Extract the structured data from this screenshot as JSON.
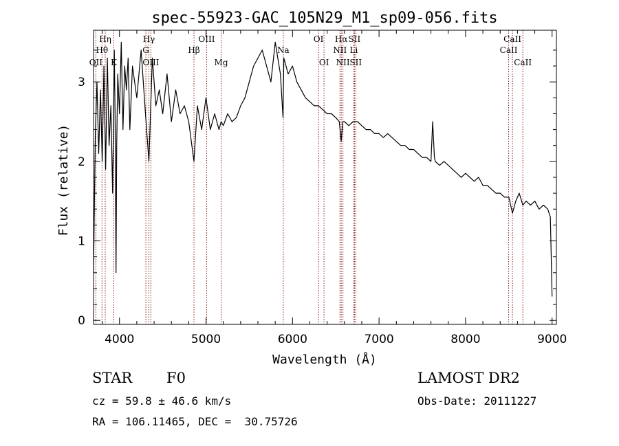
{
  "chart_data": {
    "type": "line",
    "title": "spec-55923-GAC_105N29_M1_sp09-056.fits",
    "xlabel": "Wavelength (Å)",
    "ylabel": "Flux (relative)",
    "xlim": [
      3700,
      9050
    ],
    "ylim": [
      -0.05,
      3.65
    ],
    "xticks": [
      4000,
      5000,
      6000,
      7000,
      8000,
      9000
    ],
    "yticks": [
      0,
      1,
      2,
      3
    ],
    "grid": false,
    "series": [
      {
        "x": [
          3700,
          3720,
          3740,
          3760,
          3780,
          3800,
          3820,
          3840,
          3860,
          3880,
          3900,
          3920,
          3940,
          3950,
          3960,
          3968,
          3980,
          4000,
          4020,
          4040,
          4060,
          4080,
          4100,
          4120,
          4150,
          4200,
          4250,
          4300,
          4340,
          4380,
          4420,
          4460,
          4500,
          4550,
          4600,
          4650,
          4700,
          4750,
          4800,
          4861,
          4900,
          4950,
          5000,
          5050,
          5100,
          5150,
          5175,
          5200,
          5250,
          5300,
          5350,
          5400,
          5450,
          5500,
          5550,
          5600,
          5650,
          5700,
          5750,
          5800,
          5830,
          5860,
          5890,
          5900,
          5950,
          6000,
          6050,
          6100,
          6150,
          6200,
          6250,
          6300,
          6350,
          6400,
          6450,
          6500,
          6540,
          6563,
          6580,
          6600,
          6650,
          6700,
          6750,
          6800,
          6850,
          6900,
          6950,
          7000,
          7050,
          7100,
          7150,
          7200,
          7250,
          7300,
          7350,
          7400,
          7450,
          7500,
          7550,
          7600,
          7620,
          7640,
          7650,
          7700,
          7750,
          7800,
          7850,
          7900,
          7950,
          8000,
          8050,
          8100,
          8150,
          8200,
          8250,
          8300,
          8350,
          8400,
          8450,
          8500,
          8542,
          8580,
          8620,
          8662,
          8700,
          8750,
          8800,
          8850,
          8900,
          8950,
          8980,
          9000
        ],
        "y": [
          0.6,
          2.3,
          3.0,
          2.1,
          2.9,
          2.0,
          3.2,
          1.9,
          3.3,
          2.2,
          2.7,
          1.6,
          3.4,
          2.5,
          0.6,
          2.2,
          3.1,
          2.6,
          3.5,
          2.4,
          3.2,
          2.9,
          3.3,
          2.4,
          3.2,
          2.8,
          3.4,
          2.6,
          2.0,
          3.3,
          2.7,
          2.9,
          2.6,
          3.1,
          2.5,
          2.9,
          2.6,
          2.7,
          2.5,
          2.0,
          2.7,
          2.4,
          2.8,
          2.4,
          2.6,
          2.4,
          2.5,
          2.45,
          2.6,
          2.5,
          2.55,
          2.7,
          2.8,
          3.0,
          3.2,
          3.3,
          3.4,
          3.2,
          3.0,
          3.5,
          3.3,
          3.1,
          2.55,
          3.3,
          3.1,
          3.2,
          3.0,
          2.9,
          2.8,
          2.75,
          2.7,
          2.7,
          2.65,
          2.6,
          2.6,
          2.55,
          2.5,
          2.25,
          2.5,
          2.5,
          2.45,
          2.5,
          2.5,
          2.45,
          2.4,
          2.4,
          2.35,
          2.35,
          2.3,
          2.35,
          2.3,
          2.25,
          2.2,
          2.2,
          2.15,
          2.15,
          2.1,
          2.05,
          2.05,
          2.0,
          2.5,
          2.05,
          2.0,
          1.95,
          2.0,
          1.95,
          1.9,
          1.85,
          1.8,
          1.85,
          1.8,
          1.75,
          1.8,
          1.7,
          1.7,
          1.65,
          1.6,
          1.6,
          1.55,
          1.55,
          1.35,
          1.5,
          1.6,
          1.45,
          1.5,
          1.45,
          1.5,
          1.4,
          1.45,
          1.4,
          1.3,
          0.3
        ]
      }
    ],
    "line_markers": [
      {
        "name": "Hη",
        "wavelength": 3835,
        "row": 0
      },
      {
        "name": "Hθ",
        "wavelength": 3798,
        "row": 1
      },
      {
        "name": "OII",
        "wavelength": 3727,
        "row": 2
      },
      {
        "name": "K",
        "wavelength": 3934,
        "row": 2
      },
      {
        "name": "Hγ",
        "wavelength": 4340,
        "row": 0
      },
      {
        "name": "G",
        "wavelength": 4305,
        "row": 1
      },
      {
        "name": "OIII",
        "wavelength": 4363,
        "row": 2
      },
      {
        "name": "OIII",
        "wavelength": 5007,
        "row": 0
      },
      {
        "name": "Hβ",
        "wavelength": 4861,
        "row": 1
      },
      {
        "name": "Mg",
        "wavelength": 5175,
        "row": 2
      },
      {
        "name": "Na",
        "wavelength": 5893,
        "row": 1
      },
      {
        "name": "OI",
        "wavelength": 6300,
        "row": 0
      },
      {
        "name": "OI",
        "wavelength": 6364,
        "row": 2
      },
      {
        "name": "Hα",
        "wavelength": 6563,
        "row": 0
      },
      {
        "name": "NII",
        "wavelength": 6548,
        "row": 1
      },
      {
        "name": "NII",
        "wavelength": 6583,
        "row": 2
      },
      {
        "name": "SII",
        "wavelength": 6716,
        "row": 0
      },
      {
        "name": "Li",
        "wavelength": 6708,
        "row": 1
      },
      {
        "name": "SII",
        "wavelength": 6731,
        "row": 2
      },
      {
        "name": "CaII",
        "wavelength": 8542,
        "row": 0
      },
      {
        "name": "CaII",
        "wavelength": 8498,
        "row": 1
      },
      {
        "name": "CaII",
        "wavelength": 8662,
        "row": 2
      }
    ],
    "marker_color": "#8b1a1a"
  },
  "info": {
    "class": "STAR",
    "subclass": "F0",
    "survey": "LAMOST DR2",
    "cz": "cz = 59.8 ± 46.6 km/s",
    "obs_date": "Obs-Date: 20111227",
    "coords": "RA = 106.11465, DEC =  30.75726"
  }
}
